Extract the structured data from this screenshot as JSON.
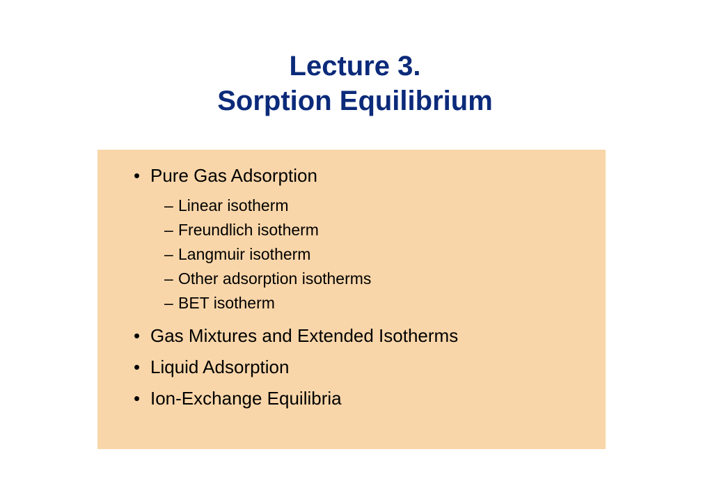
{
  "title": {
    "line1": "Lecture 3.",
    "line2": "Sorption Equilibrium",
    "color": "#0b2a7a",
    "fontsize": 40,
    "fontweight": 700
  },
  "content_box": {
    "background_color": "#f9d6a9",
    "text_color": "#000000",
    "bullet_fontsize": 26,
    "sub_fontsize": 23
  },
  "outline": {
    "items": [
      {
        "label": "Pure Gas Adsorption",
        "subitems": [
          "Linear isotherm",
          "Freundlich isotherm",
          "Langmuir isotherm",
          "Other adsorption isotherms",
          "BET isotherm"
        ]
      },
      {
        "label": "Gas Mixtures and Extended Isotherms",
        "subitems": []
      },
      {
        "label": "Liquid Adsorption",
        "subitems": []
      },
      {
        "label": "Ion-Exchange Equilibria",
        "subitems": []
      }
    ]
  }
}
